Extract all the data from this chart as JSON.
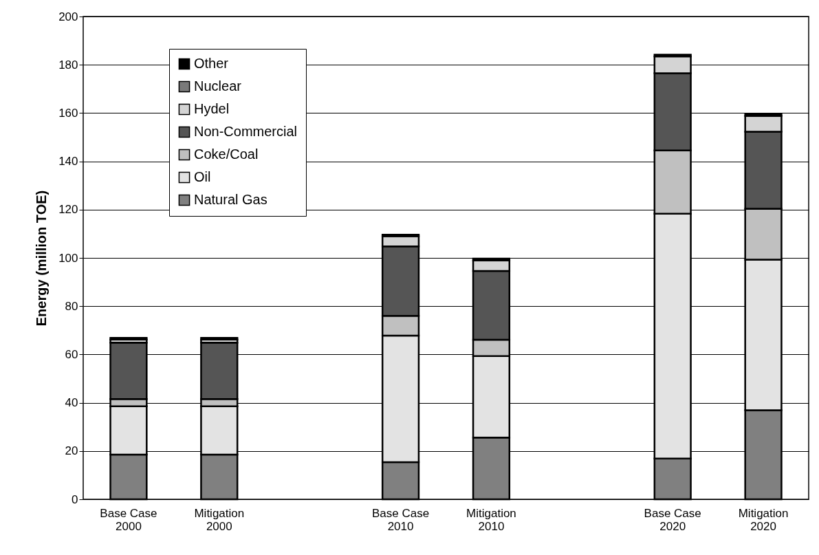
{
  "chart_data": {
    "type": "bar",
    "stacked": true,
    "ylabel": "Energy (million TOE)",
    "categories": [
      "Base Case 2000",
      "Mitigation 2000",
      null,
      "Base Case 2010",
      "Mitigation 2010",
      null,
      "Base Case 2020",
      "Mitigation 2020"
    ],
    "series": [
      {
        "name": "Natural Gas",
        "color": "#808080",
        "values": [
          18.5,
          18.5,
          null,
          15.4,
          25.6,
          null,
          16.9,
          36.9
        ]
      },
      {
        "name": "Oil",
        "color": "#e3e3e3",
        "values": [
          20,
          20,
          null,
          52.4,
          33.7,
          null,
          101.4,
          62.4
        ]
      },
      {
        "name": "Coke/Coal",
        "color": "#c0c0c0",
        "values": [
          3,
          3,
          null,
          8.2,
          6.8,
          null,
          26.2,
          21.1
        ]
      },
      {
        "name": "Non-Commercial",
        "color": "#555555",
        "values": [
          23.4,
          23.4,
          null,
          28.8,
          28.5,
          null,
          32,
          31.9
        ]
      },
      {
        "name": "Hydel",
        "color": "#d4d4d4",
        "values": [
          1.3,
          1.3,
          null,
          4.2,
          4.3,
          null,
          7,
          6.5
        ]
      },
      {
        "name": "Nuclear",
        "color": "#7a7a7a",
        "values": [
          0,
          0,
          null,
          0,
          0,
          null,
          0,
          0
        ]
      },
      {
        "name": "Other",
        "color": "#000000",
        "values": [
          0.7,
          0.7,
          null,
          0.6,
          0.8,
          null,
          0.7,
          0.9
        ]
      }
    ],
    "ylim": [
      0,
      200
    ],
    "yticks": [
      0,
      20,
      40,
      60,
      80,
      100,
      120,
      140,
      160,
      180,
      200
    ],
    "grid": "y",
    "legend": "top left"
  }
}
